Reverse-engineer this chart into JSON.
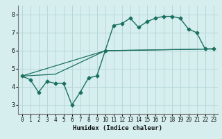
{
  "xlabel": "Humidex (Indice chaleur)",
  "ylabel": "",
  "bg_color": "#d6eeee",
  "line_color": "#1a7060",
  "grid_color": "#b8d8d8",
  "xlim": [
    -0.5,
    23.5
  ],
  "ylim": [
    2.5,
    8.5
  ],
  "xticks": [
    0,
    1,
    2,
    3,
    4,
    5,
    6,
    7,
    8,
    9,
    10,
    11,
    12,
    13,
    14,
    15,
    16,
    17,
    18,
    19,
    20,
    21,
    22,
    23
  ],
  "yticks": [
    3,
    4,
    5,
    6,
    7,
    8
  ],
  "line1_x": [
    0,
    1,
    2,
    3,
    4,
    5,
    6,
    7,
    8,
    9,
    10,
    11,
    12,
    13,
    14,
    15,
    16,
    17,
    18,
    19,
    20,
    21,
    22,
    23
  ],
  "line1_y": [
    4.6,
    4.4,
    3.7,
    4.3,
    4.2,
    4.2,
    3.0,
    3.7,
    4.5,
    4.6,
    6.0,
    7.4,
    7.5,
    7.8,
    7.3,
    7.6,
    7.8,
    7.9,
    7.9,
    7.8,
    7.2,
    7.0,
    6.1,
    6.1
  ],
  "line2_x": [
    0,
    10,
    23
  ],
  "line2_y": [
    4.6,
    6.0,
    6.1
  ],
  "line3_x": [
    0,
    4,
    10,
    23
  ],
  "line3_y": [
    4.6,
    4.7,
    6.0,
    6.1
  ]
}
